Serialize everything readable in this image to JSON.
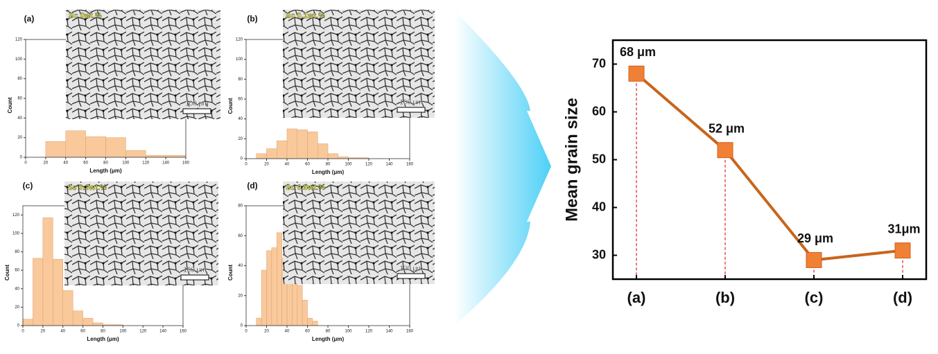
{
  "chart_data": [
    {
      "type": "histogram",
      "panel_label": "(a)",
      "inset_label": "Sc 0wt.%",
      "scale_bar": "100 μm",
      "xlabel": "Length (μm)",
      "ylabel": "Count",
      "bins": [
        20,
        40,
        60,
        80,
        100,
        120,
        140,
        160
      ],
      "counts": [
        16,
        27,
        21,
        20,
        7,
        2,
        2
      ],
      "color": "#f9c99b",
      "xlim": [
        0,
        160
      ],
      "ylim": [
        0,
        120
      ],
      "xticks": [
        0,
        20,
        40,
        60,
        80,
        100,
        120,
        140,
        160
      ],
      "yticks": [
        0,
        20,
        40,
        60,
        80,
        100,
        120
      ]
    },
    {
      "type": "histogram",
      "panel_label": "(b)",
      "inset_label": "Sc 0.1wt.%",
      "scale_bar": "100 μm",
      "xlabel": "Length (μm)",
      "ylabel": "Count",
      "bins": [
        10,
        20,
        30,
        40,
        50,
        60,
        70,
        80,
        90,
        100,
        110,
        120
      ],
      "counts": [
        5,
        10,
        18,
        30,
        29,
        27,
        15,
        5,
        2,
        1,
        1
      ],
      "color": "#f9c99b",
      "xlim": [
        0,
        160
      ],
      "ylim": [
        0,
        120
      ],
      "xticks": [
        0,
        20,
        40,
        60,
        80,
        100,
        120,
        140,
        160
      ],
      "yticks": [
        0,
        20,
        40,
        60,
        80,
        100,
        120
      ]
    },
    {
      "type": "histogram",
      "panel_label": "(c)",
      "inset_label": "Sc 0.3wt.%",
      "scale_bar": "100 μm",
      "xlabel": "Length (μm)",
      "ylabel": "Count",
      "bins": [
        0,
        10,
        20,
        30,
        40,
        50,
        60,
        70,
        80,
        90,
        100
      ],
      "counts": [
        7,
        73,
        117,
        72,
        38,
        16,
        8,
        3,
        1,
        1
      ],
      "color": "#f9c99b",
      "xlim": [
        0,
        160
      ],
      "ylim": [
        0,
        130
      ],
      "xticks": [
        0,
        20,
        40,
        60,
        80,
        100,
        120,
        140,
        160
      ],
      "yticks": [
        0,
        20,
        40,
        60,
        80,
        100,
        120
      ]
    },
    {
      "type": "histogram",
      "panel_label": "(d)",
      "inset_label": "Sc 0.5wt.%",
      "scale_bar": "100 μm",
      "xlabel": "Length (μm)",
      "ylabel": "Count",
      "bins": [
        10,
        15,
        20,
        25,
        30,
        35,
        40,
        45,
        50,
        55,
        60,
        65,
        70
      ],
      "counts": [
        5,
        37,
        50,
        52,
        62,
        45,
        34,
        33,
        27,
        17,
        5,
        3
      ],
      "color": "#f9c99b",
      "xlim": [
        0,
        160
      ],
      "ylim": [
        0,
        80
      ],
      "xticks": [
        0,
        20,
        40,
        60,
        80,
        100,
        120,
        140,
        160
      ],
      "yticks": [
        0,
        20,
        40,
        60,
        80
      ]
    },
    {
      "type": "line",
      "ylabel": "Mean grain size",
      "categories": [
        "(a)",
        "(b)",
        "(c)",
        "(d)"
      ],
      "values": [
        68,
        52,
        29,
        31
      ],
      "value_labels": [
        "68 μm",
        "52 μm",
        "29 μm",
        "31μm"
      ],
      "color": "#c8651b",
      "marker_color": "#f08035",
      "ylim": [
        25,
        75
      ],
      "yticks": [
        30,
        40,
        50,
        60,
        70
      ]
    }
  ]
}
